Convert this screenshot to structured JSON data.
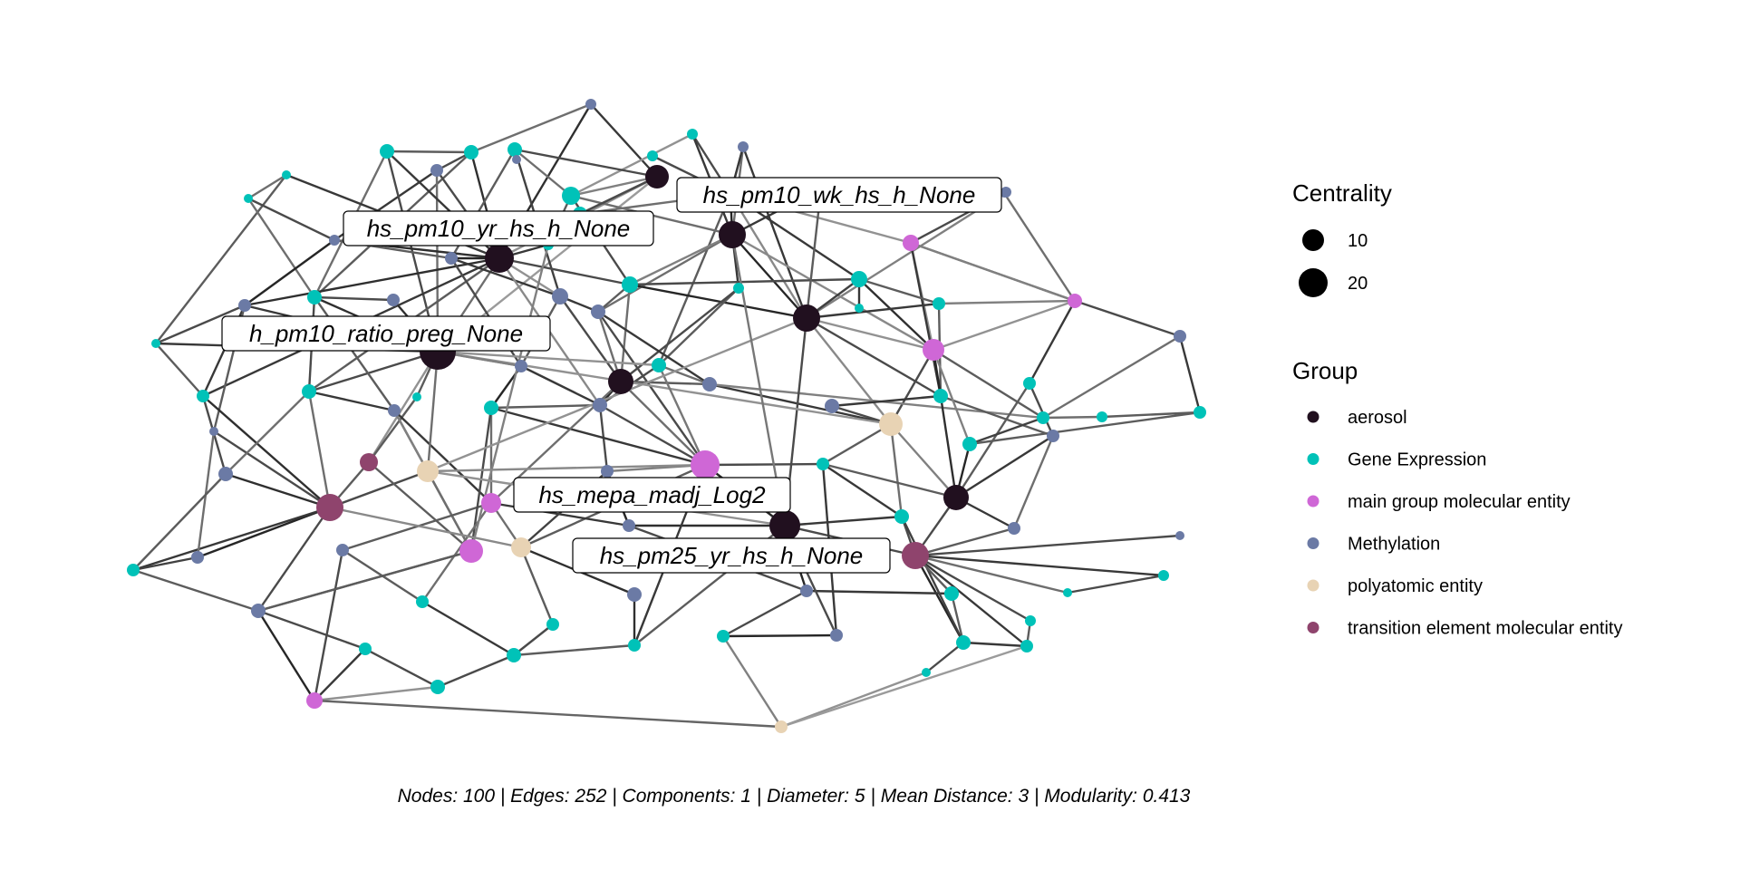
{
  "legend": {
    "centrality_title": "Centrality",
    "centrality_sizes": [
      {
        "label": "10",
        "value": 10
      },
      {
        "label": "20",
        "value": 20
      }
    ],
    "group_title": "Group",
    "groups": [
      {
        "label": "aerosol",
        "color": "#21101f"
      },
      {
        "label": "Gene Expression",
        "color": "#00c2b8"
      },
      {
        "label": "main group molecular entity",
        "color": "#cf67d6"
      },
      {
        "label": "Methylation",
        "color": "#6b7aa5"
      },
      {
        "label": "polyatomic entity",
        "color": "#e8d3b4"
      },
      {
        "label": "transition element molecular entity",
        "color": "#8f446d"
      }
    ]
  },
  "labels": [
    {
      "text": "hs_pm10_wk_hs_h_None"
    },
    {
      "text": "hs_pm10_yr_hs_h_None"
    },
    {
      "text": "h_pm10_ratio_preg_None"
    },
    {
      "text": "hs_mepa_madj_Log2"
    },
    {
      "text": "hs_pm25_yr_hs_h_None"
    }
  ],
  "caption": "Nodes: 100 | Edges: 252 | Components: 1 | Diameter: 5 | Mean Distance: 3 | Modularity: 0.413"
}
